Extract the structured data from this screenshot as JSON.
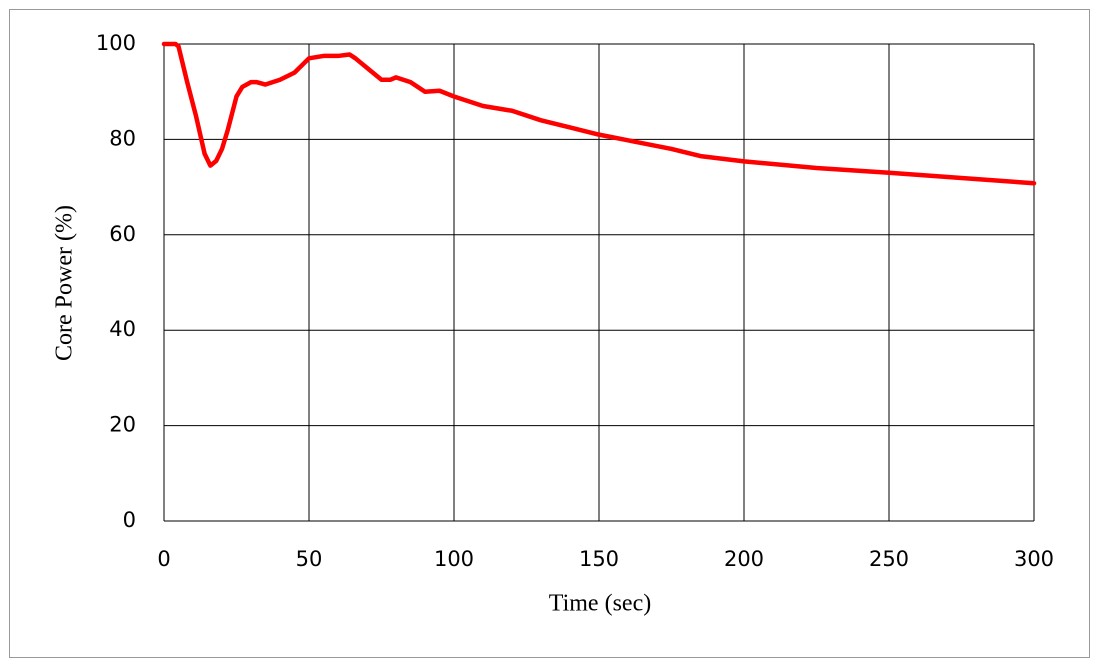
{
  "chart_data": {
    "type": "line",
    "x_label": "Time (sec)",
    "y_label": "Core Power (%)",
    "x": [
      0,
      4,
      5,
      8,
      11,
      14,
      16,
      18,
      20,
      22,
      25,
      27,
      30,
      32,
      35,
      40,
      45,
      50,
      55,
      60,
      64,
      66,
      70,
      75,
      78,
      80,
      85,
      90,
      95,
      100,
      110,
      120,
      130,
      140,
      150,
      160,
      175,
      185,
      200,
      225,
      250,
      275,
      300
    ],
    "series": [
      {
        "name": "Core Power",
        "color": "#ff0000",
        "values": [
          100,
          100,
          99.5,
          92,
          85,
          77,
          74.5,
          75.5,
          78,
          82,
          89,
          91,
          92,
          92,
          91.5,
          92.5,
          94,
          97,
          97.5,
          97.5,
          97.8,
          97,
          95,
          92.5,
          92.5,
          93,
          92,
          90,
          90.2,
          89,
          87,
          86,
          84,
          82.5,
          81,
          79.8,
          78,
          76.5,
          75.4,
          74,
          73,
          71.9,
          70.8
        ]
      }
    ],
    "xlim": [
      0,
      300
    ],
    "xticks": [
      0,
      50,
      100,
      150,
      200,
      250,
      300
    ],
    "ylim": [
      0,
      100
    ],
    "yticks": [
      0,
      20,
      40,
      60,
      80,
      100
    ],
    "grid": true
  }
}
